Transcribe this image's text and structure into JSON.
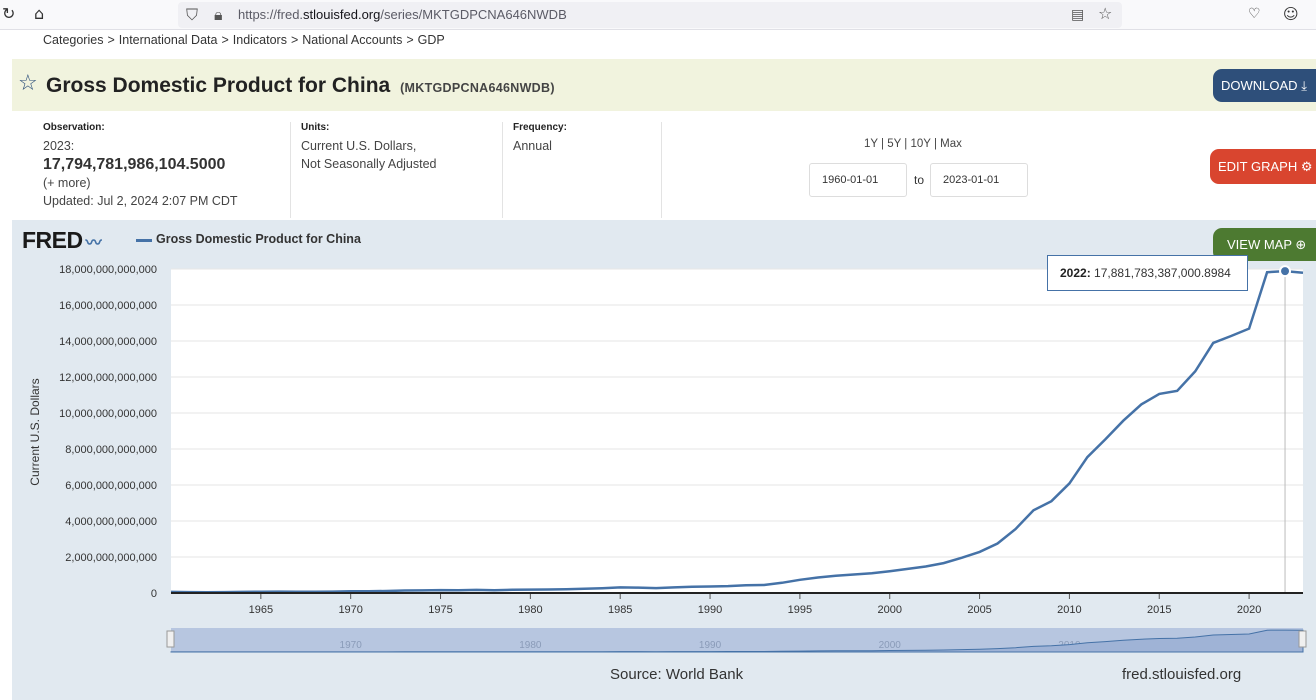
{
  "browser": {
    "url_prefix": "https://fred.",
    "url_domain": "stlouisfed.org",
    "url_path": "/series/MKTGDPCNA646NWDB"
  },
  "breadcrumb": [
    "Categories",
    "International Data",
    "Indicators",
    "National Accounts",
    "GDP"
  ],
  "breadcrumb_sep": ">",
  "header": {
    "title": "Gross Domestic Product for China",
    "series_id": "(MKTGDPCNA646NWDB)",
    "download_label": "DOWNLOAD"
  },
  "meta": {
    "observation_label": "Observation:",
    "observation_date": "2023:",
    "observation_value": "17,794,781,986,104.5000",
    "more": "(+ more)",
    "updated": "Updated: Jul 2, 2024 2:07 PM CDT",
    "units_label": "Units:",
    "units_line1": "Current U.S. Dollars,",
    "units_line2": "Not Seasonally Adjusted",
    "frequency_label": "Frequency:",
    "frequency": "Annual"
  },
  "range": {
    "links": [
      "1Y",
      "5Y",
      "10Y",
      "Max"
    ],
    "start": "1960-01-01",
    "to_label": "to",
    "end": "2023-01-01",
    "edit_label": "EDIT GRAPH"
  },
  "graph": {
    "logo": "FRED",
    "legend": "Gross Domestic Product for China",
    "view_map_label": "VIEW MAP",
    "tooltip_year": "2022:",
    "tooltip_value": "17,881,783,387,000.8984",
    "source": "Source: World Bank",
    "site": "fred.stlouisfed.org"
  },
  "colors": {
    "series": "#4572a7",
    "download": "#2e4f7a",
    "edit": "#d9452f",
    "map": "#4d7a31"
  },
  "chart_data": {
    "type": "line",
    "ylabel": "Current U.S. Dollars",
    "ylim": [
      0,
      18000000000000
    ],
    "yticks": [
      0,
      2000000000000,
      4000000000000,
      6000000000000,
      8000000000000,
      10000000000000,
      12000000000000,
      14000000000000,
      16000000000000,
      18000000000000
    ],
    "ytick_labels": [
      "0",
      "2,000,000,000,000",
      "4,000,000,000,000",
      "6,000,000,000,000",
      "8,000,000,000,000",
      "10,000,000,000,000",
      "12,000,000,000,000",
      "14,000,000,000,000",
      "16,000,000,000,000",
      "18,000,000,000,000"
    ],
    "xticks": [
      1965,
      1970,
      1975,
      1980,
      1985,
      1990,
      1995,
      2000,
      2005,
      2010,
      2015,
      2020
    ],
    "navigator_ticks": [
      1970,
      1980,
      1990,
      2000,
      2010,
      2020
    ],
    "xlim": [
      1960,
      2023
    ],
    "series": [
      {
        "x": [
          1960,
          1961,
          1962,
          1963,
          1964,
          1965,
          1966,
          1967,
          1968,
          1969,
          1970,
          1971,
          1972,
          1973,
          1974,
          1975,
          1976,
          1977,
          1978,
          1979,
          1980,
          1981,
          1982,
          1983,
          1984,
          1985,
          1986,
          1987,
          1988,
          1989,
          1990,
          1991,
          1992,
          1993,
          1994,
          1995,
          1996,
          1997,
          1998,
          1999,
          2000,
          2001,
          2002,
          2003,
          2004,
          2005,
          2006,
          2007,
          2008,
          2009,
          2010,
          2011,
          2012,
          2013,
          2014,
          2015,
          2016,
          2017,
          2018,
          2019,
          2020,
          2021,
          2022,
          2023
        ],
        "y": [
          59700000000,
          50100000000,
          47200000000,
          50700000000,
          59700000000,
          70400000000,
          76700000000,
          72900000000,
          70800000000,
          79700000000,
          92600000000,
          99800000000,
          113700000000,
          138500000000,
          144200000000,
          163400000000,
          153900000000,
          174900000000,
          149500000000,
          178300000000,
          191100000000,
          195900000000,
          205100000000,
          230700000000,
          259900000000,
          309500000000,
          300800000000,
          272900000000,
          312400000000,
          347800000000,
          360900000000,
          383400000000,
          426900000000,
          444700000000,
          564300000000,
          734500000000,
          863700000000,
          961600000000,
          1029000000000,
          1094000000000,
          1211300000000,
          1339400000000,
          1470600000000,
          1660300000000,
          1955300000000,
          2286000000000,
          2752100000000,
          3550300000000,
          4594300000000,
          5101700000000,
          6087200000000,
          7551500000000,
          8532200000000,
          9570400000000,
          10475700000000,
          11061600000000,
          11233300000000,
          12310400000000,
          13894800000000,
          14280000000000,
          14687700000000,
          17820500000000,
          17881800000000,
          17794800000000
        ]
      }
    ]
  }
}
